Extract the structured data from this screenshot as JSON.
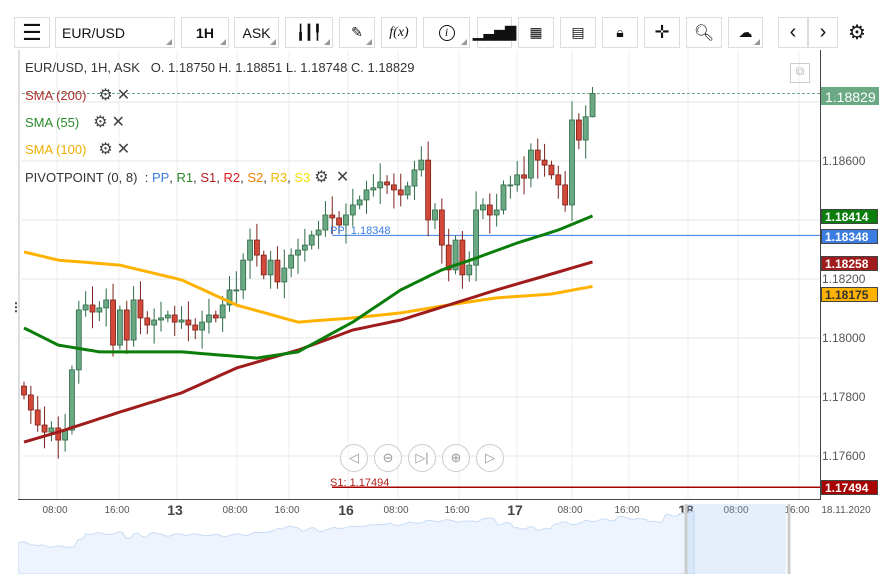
{
  "toolbar": {
    "symbol": "EUR/USD",
    "timeframe": "1H",
    "price_type": "ASK",
    "fx_label": "f(x)",
    "info_label": "i"
  },
  "legend": {
    "ohlc": "EUR/USD, 1H, ASK   O. 1.18750 H. 1.18851 L. 1.18748 C. 1.18829",
    "sma200": "SMA (200)",
    "sma55": "SMA (55)",
    "sma100": "SMA (100)",
    "pivot": "PIVOTPOINT (0, 8)",
    "pivot_colon": ":",
    "pp": "PP",
    "r1": "R1",
    "s1": "S1",
    "r2": "R2",
    "s2": "S2",
    "r3": "R3",
    "s3": "S3"
  },
  "colors": {
    "up": "#6aa984",
    "down": "#d2493a",
    "sma55": "#0a7d0a",
    "sma200": "#a01c1c",
    "sma100": "#ffb300",
    "pp": "#3b7de0",
    "s1": "#a80000"
  },
  "price_axis": {
    "labels": [
      "1.18600",
      "1.18200",
      "1.18000",
      "1.17800",
      "1.17600"
    ]
  },
  "badges": {
    "last": "1.18829",
    "sma55": "1.18414",
    "pp": "1.18348",
    "sma200": "1.18258",
    "sma100": "1.18175",
    "s1": "1.17494"
  },
  "lines": {
    "pp_label": "PP: 1.18348",
    "s1_label": "S1: 1.17494"
  },
  "time_axis": [
    "08:00",
    "16:00",
    "13",
    "08:00",
    "16:00",
    "16",
    "08:00",
    "16:00",
    "17",
    "08:00",
    "16:00",
    "18",
    "08:00",
    "16:00",
    "18.11.2020"
  ],
  "chart_data": {
    "type": "candlestick",
    "last": {
      "open": 1.1875,
      "high": 1.18851,
      "low": 1.18748,
      "close": 1.18829
    },
    "closes": [
      1.17807,
      1.17756,
      1.17705,
      1.17681,
      1.17695,
      1.17654,
      1.17688,
      1.17892,
      1.18095,
      1.18112,
      1.18088,
      1.18102,
      1.18129,
      1.17976,
      1.18095,
      1.17993,
      1.18129,
      1.18068,
      1.18044,
      1.18061,
      1.18068,
      1.18078,
      1.18054,
      1.18061,
      1.18044,
      1.18027,
      1.18054,
      1.18078,
      1.18068,
      1.18112,
      1.18163,
      1.18163,
      1.18264,
      1.18332,
      1.18281,
      1.18214,
      1.18264,
      1.1819,
      1.18237,
      1.18281,
      1.18298,
      1.18315,
      1.18349,
      1.18366,
      1.18417,
      1.18407,
      1.18383,
      1.18417,
      1.18451,
      1.18468,
      1.18502,
      1.18509,
      1.18529,
      1.18519,
      1.18502,
      1.18485,
      1.18515,
      1.1857,
      1.18603,
      1.184,
      1.18434,
      1.18315,
      1.18231,
      1.18332,
      1.18214,
      1.18247,
      1.18434,
      1.18451,
      1.18417,
      1.18434,
      1.18519,
      1.18519,
      1.18553,
      1.18542,
      1.18637,
      1.18603,
      1.18586,
      1.18553,
      1.18519,
      1.18451,
      1.18739,
      1.18671,
      1.1875,
      1.18829
    ],
    "sma55": [
      [
        0,
        1.18034
      ],
      [
        5,
        1.17976
      ],
      [
        11,
        1.17953
      ],
      [
        23,
        1.17953
      ],
      [
        34,
        1.17932
      ],
      [
        40,
        1.17953
      ],
      [
        48,
        1.18054
      ],
      [
        55,
        1.18163
      ],
      [
        61,
        1.18231
      ],
      [
        66,
        1.18271
      ],
      [
        72,
        1.18322
      ],
      [
        78,
        1.18366
      ],
      [
        83,
        1.18414
      ]
    ],
    "sma200": [
      [
        0,
        1.17647
      ],
      [
        5,
        1.17681
      ],
      [
        14,
        1.17749
      ],
      [
        23,
        1.17814
      ],
      [
        31,
        1.17898
      ],
      [
        40,
        1.17959
      ],
      [
        48,
        1.18027
      ],
      [
        55,
        1.18061
      ],
      [
        62,
        1.18112
      ],
      [
        69,
        1.18163
      ],
      [
        77,
        1.18217
      ],
      [
        83,
        1.18258
      ]
    ],
    "sma100": [
      [
        0,
        1.18292
      ],
      [
        5,
        1.18264
      ],
      [
        14,
        1.18247
      ],
      [
        23,
        1.18197
      ],
      [
        31,
        1.18112
      ],
      [
        40,
        1.18054
      ],
      [
        48,
        1.18068
      ],
      [
        55,
        1.18085
      ],
      [
        62,
        1.18112
      ],
      [
        69,
        1.18136
      ],
      [
        77,
        1.18149
      ],
      [
        83,
        1.18175
      ]
    ],
    "pivot_pp": 1.18348,
    "pivot_s1": 1.17494,
    "ylim": [
      1.1745,
      1.1895
    ]
  }
}
